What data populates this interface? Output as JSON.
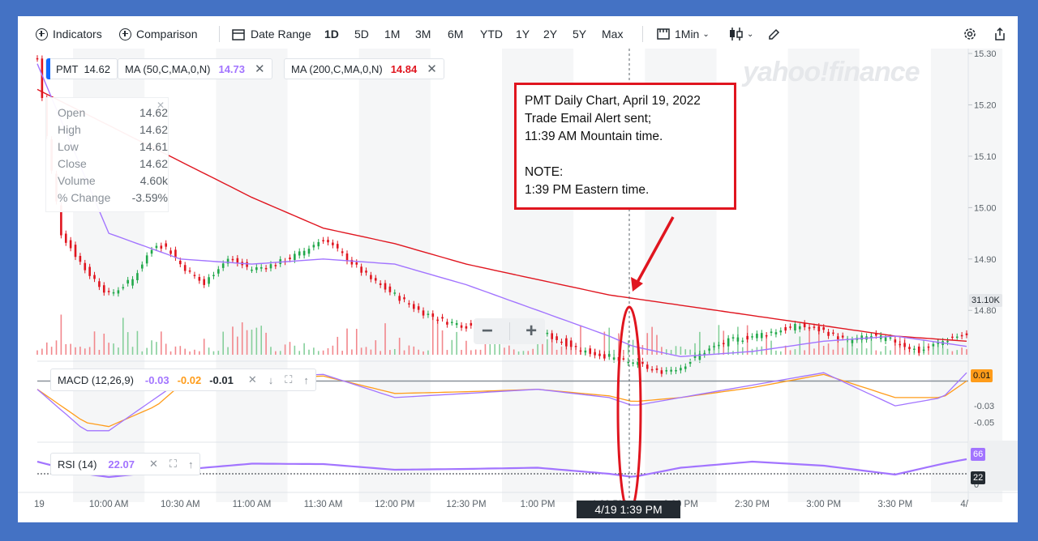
{
  "toolbar": {
    "indicators": "Indicators",
    "comparison": "Comparison",
    "date_range": "Date Range",
    "ranges": [
      "1D",
      "5D",
      "1M",
      "3M",
      "6M",
      "YTD",
      "1Y",
      "2Y",
      "5Y",
      "Max"
    ],
    "active_range": "1D",
    "interval": "1Min"
  },
  "legend": {
    "symbol": "PMT",
    "symbol_price": "14.62",
    "ma50_label": "MA (50,C,MA,0,N)",
    "ma50_value": "14.73",
    "ma200_label": "MA (200,C,MA,0,N)",
    "ma200_value": "14.84"
  },
  "ohlc": {
    "open_label": "Open",
    "open": "14.62",
    "high_label": "High",
    "high": "14.62",
    "low_label": "Low",
    "low": "14.61",
    "close_label": "Close",
    "close": "14.62",
    "volume_label": "Volume",
    "volume": "4.60k",
    "change_label": "% Change",
    "change": "-3.59%"
  },
  "watermark": "yahoo!finance",
  "note": {
    "line1": "PMT Daily Chart, April 19, 2022",
    "line2": "Trade Email Alert sent;",
    "line3": "11:39 AM Mountain time.",
    "line4": "NOTE:",
    "line5": "1:39 PM Eastern time."
  },
  "macd": {
    "label": "MACD (12,26,9)",
    "v1": "-0.03",
    "v2": "-0.02",
    "v3": "-0.01"
  },
  "rsi": {
    "label": "RSI (14)",
    "value": "22.07"
  },
  "badges": {
    "volume": "31.10K",
    "macd": "0.01",
    "rsi_upper": "66",
    "rsi_current": "22"
  },
  "crosshair_label": "4/19 1:39 PM",
  "colors": {
    "up": "#21a84a",
    "down": "#e0151f",
    "ma50": "#a274ff",
    "ma200": "#e0151f",
    "macd_line": "#a274ff",
    "signal_line": "#ff9c1a",
    "rsi": "#a274ff",
    "annotation": "#e0151f"
  },
  "chart_data": {
    "type": "line",
    "title": "",
    "ylim": [
      14.72,
      15.3
    ],
    "y_ticks": [
      "15.30",
      "15.20",
      "15.10",
      "15.00",
      "14.90",
      "14.80"
    ],
    "x_ticks": [
      "19",
      "10:00 AM",
      "10:30 AM",
      "11:00 AM",
      "11:30 AM",
      "12:00 PM",
      "12:30 PM",
      "1:00 PM",
      "1:30 PM",
      "2:00 PM",
      "2:30 PM",
      "3:00 PM",
      "3:30 PM",
      "4/"
    ],
    "x_minutes": [
      0,
      30,
      60,
      90,
      120,
      150,
      180,
      210,
      240,
      270,
      300,
      330,
      360,
      390
    ],
    "series": [
      {
        "name": "PMT",
        "x": [
          0,
          5,
          10,
          20,
          30,
          40,
          45,
          50,
          55,
          60,
          65,
          70,
          75,
          80,
          90,
          100,
          110,
          120,
          125,
          130,
          140,
          150,
          160,
          170,
          180,
          190,
          200,
          210,
          220,
          230,
          240,
          245,
          250,
          255,
          260,
          270,
          280,
          290,
          300,
          310,
          320,
          330,
          340,
          350,
          360,
          365,
          370,
          375,
          380,
          385,
          390
        ],
        "values": [
          15.29,
          15.1,
          14.95,
          14.88,
          14.83,
          14.86,
          14.9,
          14.93,
          14.92,
          14.89,
          14.87,
          14.85,
          14.88,
          14.9,
          14.88,
          14.89,
          14.91,
          14.94,
          14.92,
          14.9,
          14.86,
          14.83,
          14.8,
          14.78,
          14.77,
          14.77,
          14.76,
          14.76,
          14.74,
          14.72,
          14.71,
          14.7,
          14.7,
          14.69,
          14.68,
          14.69,
          14.72,
          14.74,
          14.75,
          14.76,
          14.77,
          14.76,
          14.74,
          14.75,
          14.74,
          14.73,
          14.72,
          14.73,
          14.74,
          14.75,
          14.75
        ]
      },
      {
        "name": "MA (50,C,MA,0,N)",
        "x": [
          0,
          30,
          60,
          90,
          120,
          150,
          180,
          210,
          240,
          250,
          270,
          300,
          330,
          360,
          390
        ],
        "values": [
          15.28,
          14.95,
          14.9,
          14.89,
          14.9,
          14.89,
          14.85,
          14.8,
          14.75,
          14.73,
          14.71,
          14.72,
          14.74,
          14.75,
          14.73
        ]
      },
      {
        "name": "MA (200,C,MA,0,N)",
        "x": [
          0,
          30,
          60,
          90,
          120,
          150,
          180,
          210,
          240,
          270,
          300,
          330,
          360,
          390
        ],
        "values": [
          15.23,
          15.16,
          15.09,
          15.02,
          14.96,
          14.93,
          14.89,
          14.86,
          14.83,
          14.81,
          14.79,
          14.77,
          14.75,
          14.74
        ]
      }
    ],
    "macd": {
      "x": [
        0,
        20,
        30,
        50,
        60,
        90,
        120,
        150,
        180,
        210,
        240,
        250,
        270,
        300,
        330,
        360,
        380,
        390
      ],
      "macd": [
        -0.01,
        -0.06,
        -0.06,
        -0.02,
        0,
        0.005,
        0.008,
        -0.02,
        -0.015,
        -0.01,
        -0.02,
        -0.03,
        -0.02,
        -0.005,
        0.01,
        -0.03,
        -0.02,
        0.01
      ],
      "signal": [
        -0.01,
        -0.05,
        -0.055,
        -0.03,
        -0.005,
        0.002,
        0.006,
        -0.015,
        -0.013,
        -0.01,
        -0.018,
        -0.025,
        -0.02,
        -0.008,
        0.008,
        -0.02,
        -0.02,
        0.0
      ],
      "ylim": [
        -0.07,
        0.02
      ],
      "ticks": [
        "-0.03",
        "-0.05"
      ]
    },
    "rsi": {
      "x": [
        0,
        20,
        30,
        60,
        90,
        120,
        150,
        180,
        210,
        240,
        250,
        270,
        300,
        330,
        360,
        380,
        390
      ],
      "values": [
        60,
        30,
        22,
        40,
        55,
        54,
        40,
        42,
        45,
        30,
        22,
        45,
        60,
        50,
        28,
        55,
        66
      ],
      "ylim": [
        0,
        100
      ],
      "ticks": [
        "0"
      ]
    }
  }
}
